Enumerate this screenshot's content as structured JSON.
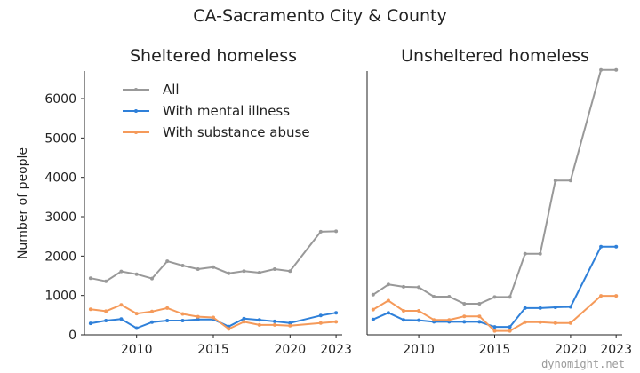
{
  "figure": {
    "title": "CA-Sacramento City & County",
    "ylabel": "Number of people",
    "watermark": "dynomight.net",
    "colors": {
      "all": "#999999",
      "mental": "#2f80d9",
      "substance": "#f59a5a"
    }
  },
  "legend": {
    "placement": "top-left of first panel",
    "entries": [
      "All",
      "With mental illness",
      "With substance abuse"
    ]
  },
  "chart_data": [
    {
      "type": "line",
      "title": "Sheltered homeless",
      "xlabel": "",
      "ylabel": "Number of people",
      "xlim": [
        2006.6,
        2023.4
      ],
      "ylim": [
        0,
        6700
      ],
      "xticks": [
        2010,
        2015,
        2020,
        2023
      ],
      "yticks": [
        0,
        1000,
        2000,
        3000,
        4000,
        5000,
        6000
      ],
      "grid": false,
      "x": [
        2007,
        2008,
        2009,
        2010,
        2011,
        2012,
        2013,
        2014,
        2015,
        2016,
        2017,
        2018,
        2019,
        2020,
        2022,
        2023
      ],
      "series": [
        {
          "name": "All",
          "color": "#999999",
          "values": [
            1440,
            1360,
            1610,
            1540,
            1430,
            1870,
            1760,
            1670,
            1720,
            1560,
            1620,
            1580,
            1670,
            1620,
            2620,
            2630
          ]
        },
        {
          "name": "With mental illness",
          "color": "#2f80d9",
          "values": [
            290,
            360,
            400,
            170,
            320,
            360,
            360,
            390,
            390,
            210,
            410,
            380,
            340,
            300,
            490,
            560
          ]
        },
        {
          "name": "With substance abuse",
          "color": "#f59a5a",
          "values": [
            650,
            600,
            760,
            540,
            590,
            680,
            530,
            460,
            440,
            150,
            330,
            250,
            250,
            230,
            300,
            330
          ]
        }
      ]
    },
    {
      "type": "line",
      "title": "Unsheltered homeless",
      "xlabel": "",
      "ylabel": "",
      "xlim": [
        2006.6,
        2023.4
      ],
      "ylim": [
        0,
        6700
      ],
      "xticks": [
        2010,
        2015,
        2020,
        2023
      ],
      "yticks": [],
      "grid": false,
      "x": [
        2007,
        2008,
        2009,
        2010,
        2011,
        2012,
        2013,
        2014,
        2015,
        2016,
        2017,
        2018,
        2019,
        2020,
        2022,
        2023
      ],
      "series": [
        {
          "name": "All",
          "color": "#999999",
          "values": [
            1020,
            1280,
            1220,
            1210,
            970,
            970,
            790,
            790,
            960,
            960,
            2060,
            2060,
            3920,
            3920,
            6730,
            6730
          ]
        },
        {
          "name": "With mental illness",
          "color": "#2f80d9",
          "values": [
            390,
            560,
            380,
            370,
            330,
            330,
            330,
            330,
            200,
            200,
            680,
            680,
            700,
            710,
            2240,
            2240
          ]
        },
        {
          "name": "With substance abuse",
          "color": "#f59a5a",
          "values": [
            640,
            870,
            610,
            610,
            380,
            380,
            470,
            470,
            100,
            100,
            320,
            320,
            300,
            300,
            990,
            990
          ]
        }
      ]
    }
  ]
}
